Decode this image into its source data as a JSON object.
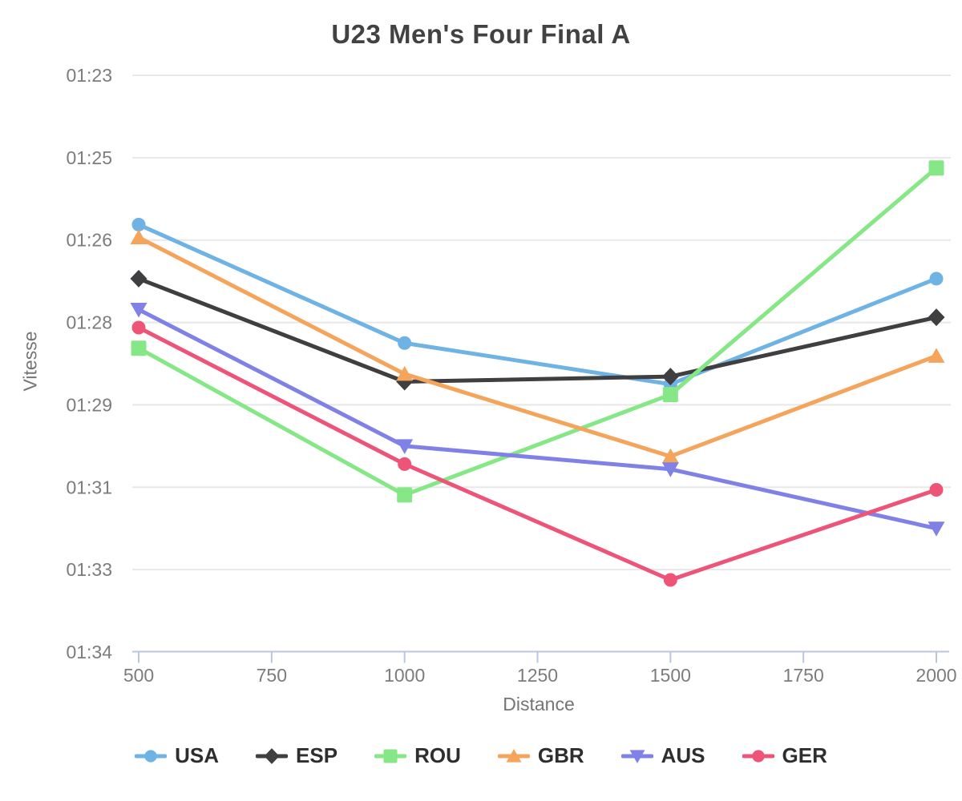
{
  "chart_data": {
    "type": "line",
    "title": "U23 Men's Four Final A",
    "xlabel": "Distance",
    "ylabel": "Vitesse",
    "x_unit": "m",
    "y_unit": "split time per 500 m (mm:ss), faster toward top",
    "grid": "horizontal-only",
    "x": [
      500,
      1000,
      1500,
      2000
    ],
    "x_ticks": [
      500,
      750,
      1000,
      1250,
      1500,
      1750,
      2000
    ],
    "y_axis_range_seconds": [
      83.0,
      94.2
    ],
    "y_ticks": [
      {
        "label": "01:23",
        "seconds": 83.0
      },
      {
        "label": "01:25",
        "seconds": 84.6
      },
      {
        "label": "01:26",
        "seconds": 86.2
      },
      {
        "label": "01:28",
        "seconds": 87.8
      },
      {
        "label": "01:29",
        "seconds": 89.4
      },
      {
        "label": "01:31",
        "seconds": 91.0
      },
      {
        "label": "01:33",
        "seconds": 92.6
      },
      {
        "label": "01:34",
        "seconds": 94.2
      }
    ],
    "series": [
      {
        "name": "USA",
        "color": "#6FB2E4",
        "marker": "circle",
        "values_seconds": [
          85.9,
          88.2,
          89.0,
          86.95
        ]
      },
      {
        "name": "ESP",
        "color": "#3F3F41",
        "marker": "diamond",
        "values_seconds": [
          86.95,
          88.95,
          88.85,
          87.7
        ]
      },
      {
        "name": "ROU",
        "color": "#86E786",
        "marker": "square",
        "values_seconds": [
          88.3,
          91.15,
          89.2,
          84.8
        ]
      },
      {
        "name": "GBR",
        "color": "#F5A45C",
        "marker": "triangle-up",
        "values_seconds": [
          86.15,
          88.8,
          90.4,
          88.45
        ]
      },
      {
        "name": "AUS",
        "color": "#7F81E7",
        "marker": "triangle-down",
        "values_seconds": [
          87.55,
          90.2,
          90.65,
          91.8
        ]
      },
      {
        "name": "GER",
        "color": "#EE5478",
        "marker": "circle",
        "values_seconds": [
          87.9,
          90.55,
          92.8,
          91.05
        ]
      }
    ],
    "legend": {
      "position": "bottom",
      "entries": [
        "USA",
        "ESP",
        "ROU",
        "GBR",
        "AUS",
        "GER"
      ]
    }
  },
  "colors": {
    "background": "#FFFFFF",
    "grid_line": "#E8E8E8",
    "axis_line": "#B9C5E2",
    "tick_label": "#7C7C7C",
    "axis_title": "#757575",
    "chart_title": "#424242",
    "legend_text": "#2E2E2E"
  }
}
